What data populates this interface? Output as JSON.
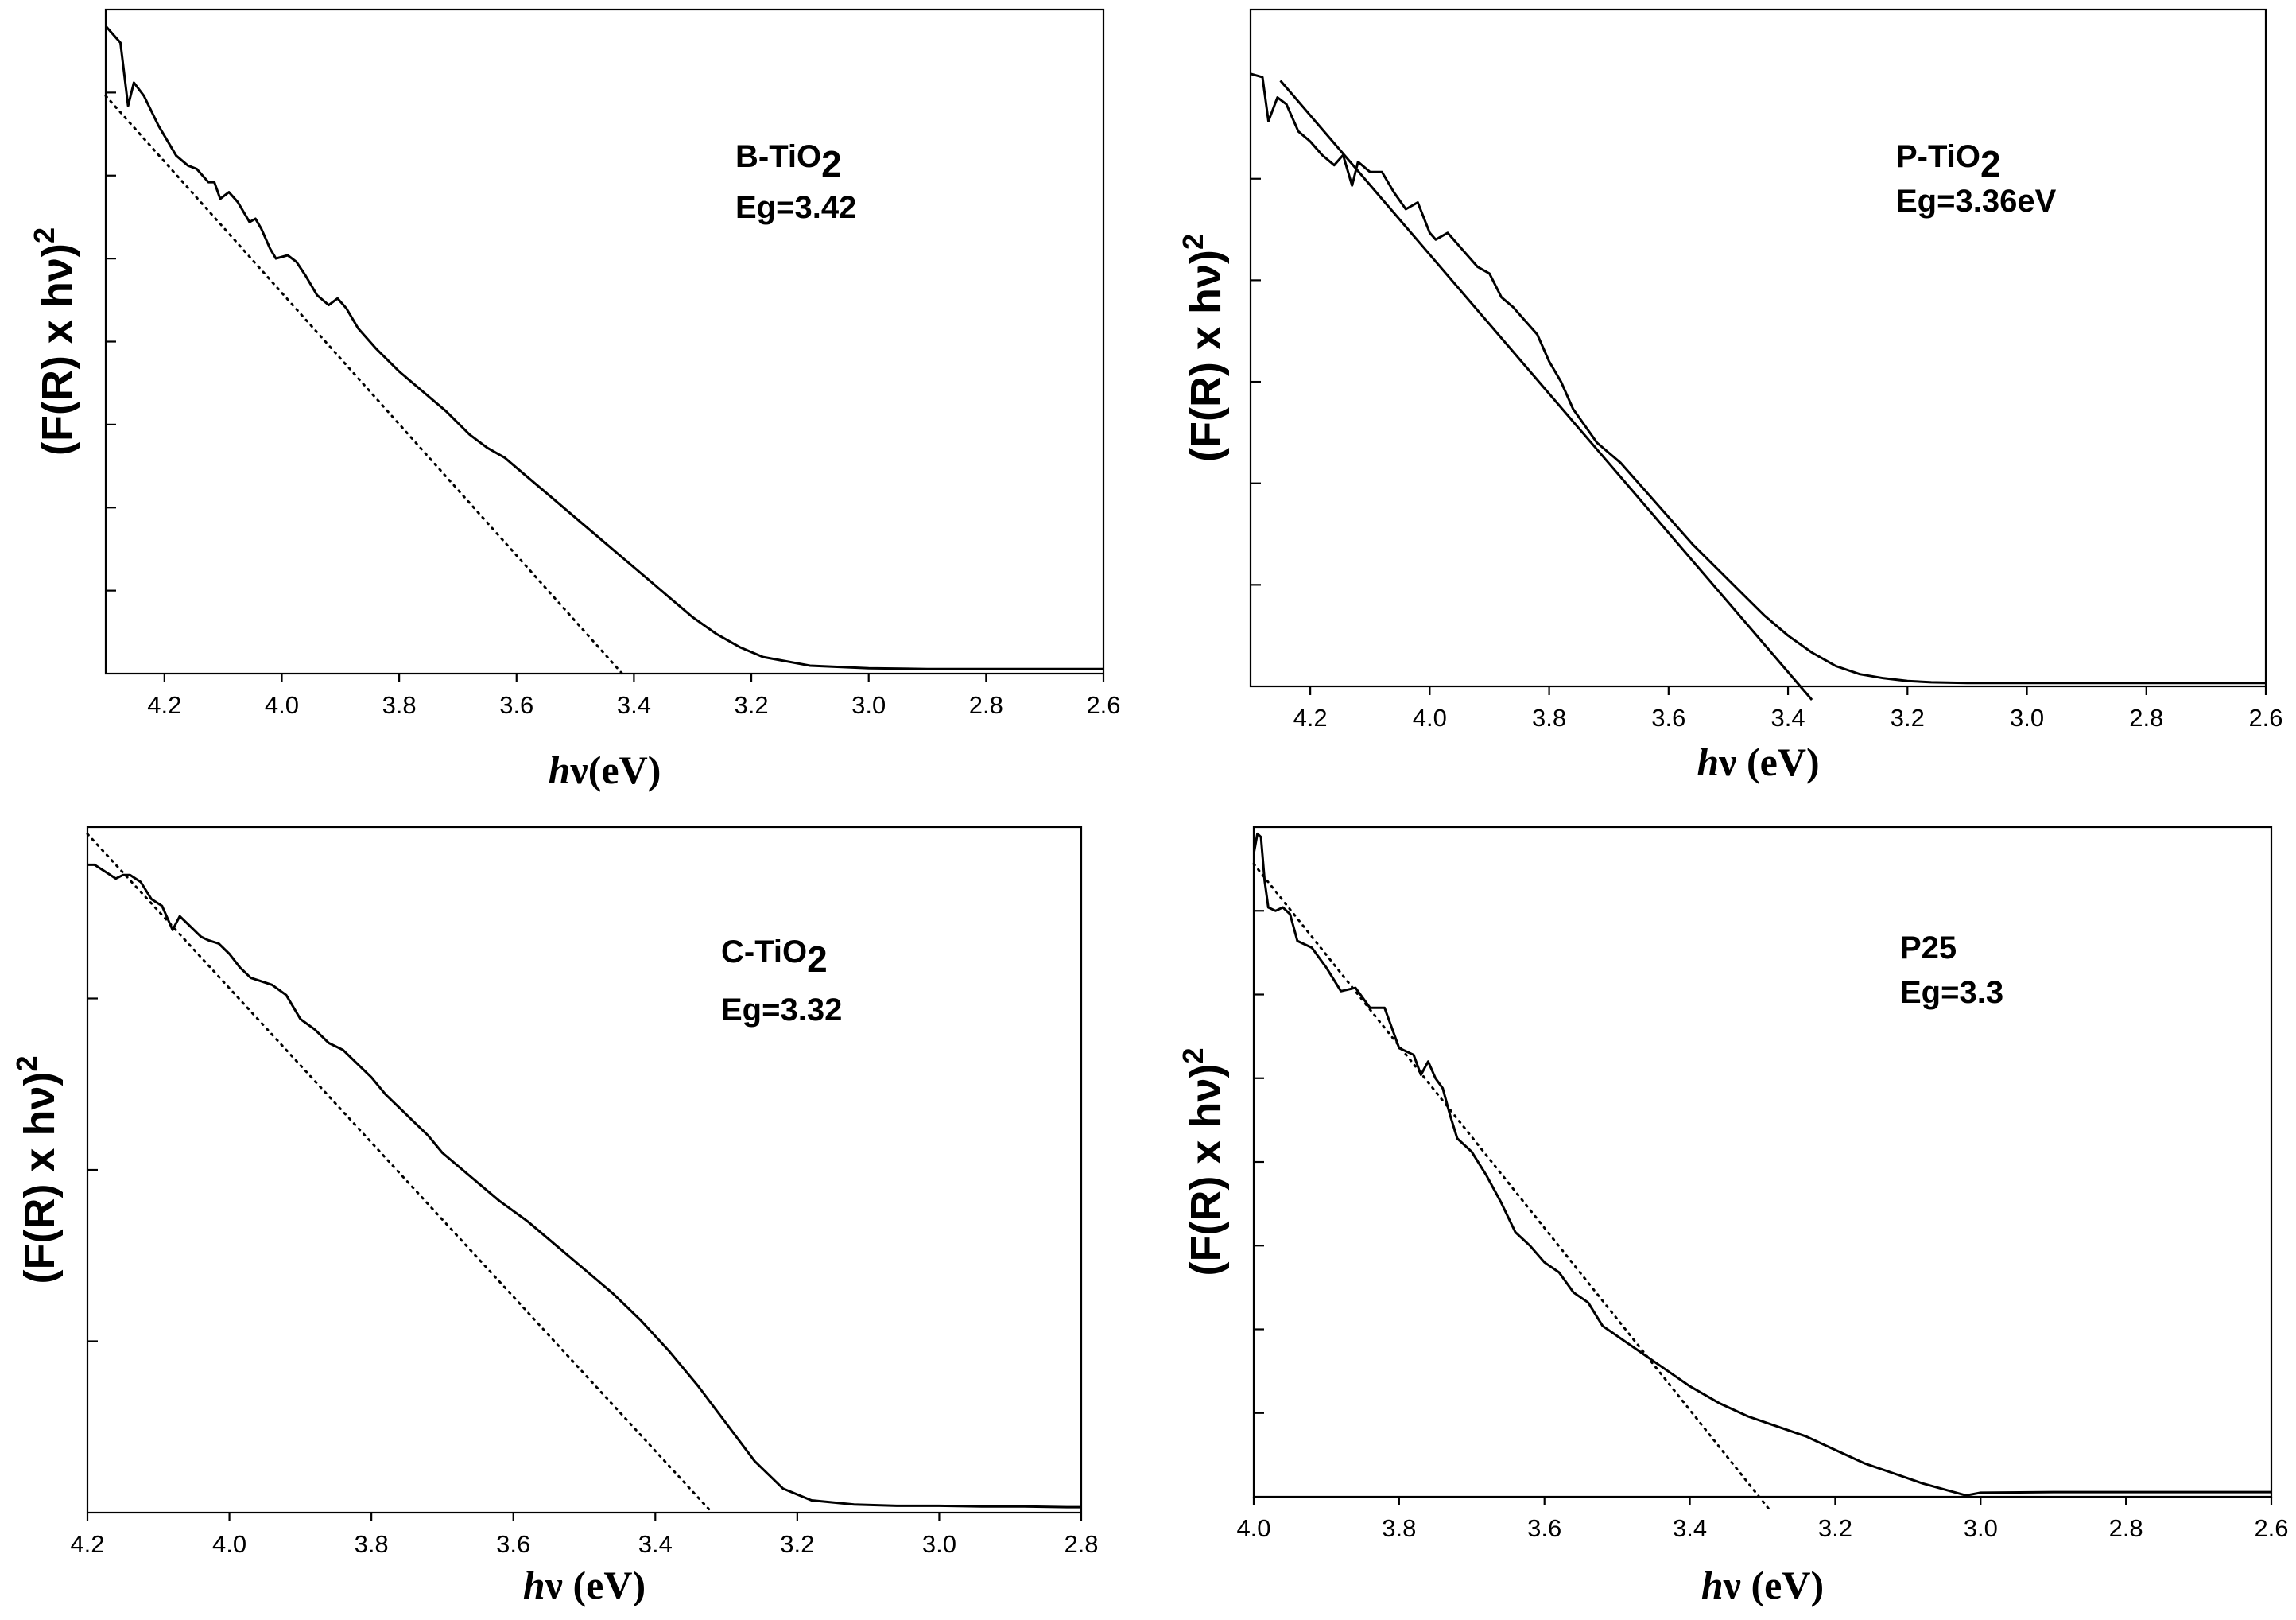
{
  "chart_data": [
    {
      "type": "line",
      "title": "",
      "xlabel": {
        "italic": "h",
        "rest": "ν(eV)"
      },
      "ylabel": "(F(R) x hν)",
      "ylabel_sup": "2",
      "xlim": [
        4.3,
        2.6
      ],
      "x_reversed": true,
      "xticks": [
        "4.2",
        "4.0",
        "3.8",
        "3.6",
        "3.4",
        "3.2",
        "3.0",
        "2.8",
        "2.6"
      ],
      "ylim": [
        0,
        1
      ],
      "y_minor_ticks": [
        0.125,
        0.25,
        0.375,
        0.5,
        0.625,
        0.75,
        0.875
      ],
      "annotation": {
        "sample": "B-TiO",
        "sub": "2",
        "eg": "Eg=3.42"
      },
      "fit_style": "dotted",
      "series": [
        {
          "name": "spectrum",
          "x": [
            4.3,
            4.285,
            4.275,
            4.262,
            4.252,
            4.235,
            4.21,
            4.18,
            4.16,
            4.145,
            4.125,
            4.115,
            4.105,
            4.09,
            4.075,
            4.055,
            4.045,
            4.035,
            4.02,
            4.01,
            3.99,
            3.975,
            3.96,
            3.94,
            3.92,
            3.905,
            3.89,
            3.87,
            3.84,
            3.8,
            3.76,
            3.72,
            3.68,
            3.65,
            3.62,
            3.58,
            3.54,
            3.5,
            3.46,
            3.42,
            3.38,
            3.34,
            3.3,
            3.26,
            3.22,
            3.18,
            3.1,
            3.0,
            2.9,
            2.8,
            2.7,
            2.6
          ],
          "y": [
            0.975,
            0.96,
            0.95,
            0.855,
            0.89,
            0.87,
            0.825,
            0.78,
            0.765,
            0.76,
            0.74,
            0.74,
            0.715,
            0.725,
            0.71,
            0.68,
            0.685,
            0.67,
            0.64,
            0.625,
            0.63,
            0.62,
            0.6,
            0.57,
            0.555,
            0.565,
            0.55,
            0.52,
            0.49,
            0.455,
            0.425,
            0.395,
            0.36,
            0.34,
            0.325,
            0.295,
            0.265,
            0.235,
            0.205,
            0.175,
            0.145,
            0.115,
            0.085,
            0.06,
            0.04,
            0.025,
            0.012,
            0.008,
            0.007,
            0.007,
            0.007,
            0.007
          ]
        },
        {
          "name": "linear fit",
          "x": [
            4.3,
            3.42
          ],
          "y": [
            0.87,
            0.0
          ]
        }
      ]
    },
    {
      "type": "line",
      "title": "",
      "xlabel": {
        "italic": "h",
        "rest": "ν (eV)"
      },
      "ylabel": "(F(R) x hν)",
      "ylabel_sup": "2",
      "xlim": [
        4.3,
        2.6
      ],
      "x_reversed": true,
      "xticks": [
        "4.2",
        "4.0",
        "3.8",
        "3.6",
        "3.4",
        "3.2",
        "3.0",
        "2.8",
        "2.6"
      ],
      "ylim": [
        0,
        1
      ],
      "y_minor_ticks": [
        0.15,
        0.3,
        0.45,
        0.6,
        0.75
      ],
      "annotation": {
        "sample": "P-TiO",
        "sub": "2",
        "eg": "Eg=3.36eV"
      },
      "fit_style": "solid",
      "series": [
        {
          "name": "spectrum",
          "x": [
            4.3,
            4.28,
            4.27,
            4.255,
            4.24,
            4.22,
            4.2,
            4.18,
            4.16,
            4.145,
            4.13,
            4.12,
            4.1,
            4.08,
            4.06,
            4.04,
            4.02,
            4.0,
            3.99,
            3.97,
            3.94,
            3.92,
            3.9,
            3.88,
            3.86,
            3.84,
            3.82,
            3.8,
            3.78,
            3.76,
            3.72,
            3.68,
            3.64,
            3.6,
            3.56,
            3.52,
            3.48,
            3.44,
            3.4,
            3.36,
            3.32,
            3.28,
            3.24,
            3.2,
            3.16,
            3.1,
            3.0,
            2.9,
            2.8,
            2.7,
            2.6
          ],
          "y": [
            0.905,
            0.9,
            0.835,
            0.87,
            0.86,
            0.82,
            0.805,
            0.785,
            0.77,
            0.785,
            0.74,
            0.775,
            0.76,
            0.76,
            0.73,
            0.705,
            0.715,
            0.67,
            0.66,
            0.67,
            0.64,
            0.62,
            0.61,
            0.575,
            0.56,
            0.54,
            0.52,
            0.48,
            0.45,
            0.41,
            0.36,
            0.33,
            0.29,
            0.25,
            0.21,
            0.175,
            0.14,
            0.105,
            0.075,
            0.05,
            0.03,
            0.018,
            0.012,
            0.008,
            0.006,
            0.005,
            0.005,
            0.005,
            0.005,
            0.005,
            0.005
          ]
        },
        {
          "name": "linear fit",
          "x": [
            4.25,
            3.36
          ],
          "y": [
            0.895,
            -0.02
          ]
        }
      ]
    },
    {
      "type": "line",
      "title": "",
      "xlabel": {
        "italic": "h",
        "rest": "ν (eV)"
      },
      "ylabel": "(F(R) x hν)",
      "ylabel_sup": "2",
      "xlim": [
        4.2,
        2.8
      ],
      "x_reversed": true,
      "xticks": [
        "4.2",
        "4.0",
        "3.8",
        "3.6",
        "3.4",
        "3.2",
        "3.0",
        "2.8"
      ],
      "ylim": [
        0,
        1
      ],
      "y_minor_ticks": [
        0.25,
        0.5,
        0.75
      ],
      "annotation": {
        "sample": "C-TiO",
        "sub": "2",
        "eg": "Eg=3.32"
      },
      "fit_style": "dotted",
      "series": [
        {
          "name": "spectrum",
          "x": [
            4.2,
            4.19,
            4.175,
            4.16,
            4.15,
            4.14,
            4.125,
            4.11,
            4.095,
            4.08,
            4.07,
            4.055,
            4.04,
            4.03,
            4.015,
            4.0,
            3.985,
            3.97,
            3.955,
            3.94,
            3.92,
            3.9,
            3.88,
            3.86,
            3.84,
            3.82,
            3.8,
            3.78,
            3.76,
            3.74,
            3.72,
            3.7,
            3.66,
            3.62,
            3.58,
            3.54,
            3.5,
            3.46,
            3.42,
            3.38,
            3.34,
            3.3,
            3.26,
            3.22,
            3.18,
            3.12,
            3.06,
            3.0,
            2.94,
            2.88,
            2.82,
            2.8
          ],
          "y": [
            0.945,
            0.945,
            0.935,
            0.925,
            0.93,
            0.93,
            0.92,
            0.895,
            0.885,
            0.85,
            0.87,
            0.855,
            0.84,
            0.835,
            0.83,
            0.815,
            0.795,
            0.78,
            0.775,
            0.77,
            0.755,
            0.72,
            0.705,
            0.685,
            0.675,
            0.655,
            0.635,
            0.61,
            0.59,
            0.57,
            0.55,
            0.525,
            0.49,
            0.455,
            0.425,
            0.39,
            0.355,
            0.32,
            0.28,
            0.235,
            0.185,
            0.13,
            0.075,
            0.035,
            0.018,
            0.012,
            0.01,
            0.01,
            0.009,
            0.009,
            0.008,
            0.008
          ]
        },
        {
          "name": "linear fit",
          "x": [
            4.2,
            3.32
          ],
          "y": [
            0.99,
            0.0
          ]
        }
      ]
    },
    {
      "type": "line",
      "title": "",
      "xlabel": {
        "italic": "h",
        "rest": "ν (eV)"
      },
      "ylabel": "(F(R) x hν)",
      "ylabel_sup": "2",
      "xlim": [
        4.0,
        2.6
      ],
      "x_reversed": true,
      "xticks": [
        "4.0",
        "3.8",
        "3.6",
        "3.4",
        "3.2",
        "3.0",
        "2.8",
        "2.6"
      ],
      "ylim": [
        0,
        1
      ],
      "y_minor_ticks": [
        0.125,
        0.25,
        0.375,
        0.5,
        0.625,
        0.75,
        0.875
      ],
      "annotation": {
        "sample": "P25",
        "sub": "",
        "eg": "Eg=3.3"
      },
      "fit_style": "dotted",
      "series": [
        {
          "name": "spectrum",
          "x": [
            4.0,
            3.995,
            3.99,
            3.985,
            3.98,
            3.97,
            3.96,
            3.95,
            3.94,
            3.92,
            3.9,
            3.88,
            3.86,
            3.84,
            3.82,
            3.8,
            3.78,
            3.77,
            3.76,
            3.75,
            3.74,
            3.73,
            3.72,
            3.7,
            3.68,
            3.66,
            3.64,
            3.62,
            3.6,
            3.58,
            3.56,
            3.54,
            3.52,
            3.48,
            3.44,
            3.4,
            3.36,
            3.32,
            3.28,
            3.24,
            3.2,
            3.16,
            3.12,
            3.08,
            3.04,
            3.02,
            3.0,
            2.9,
            2.8,
            2.7,
            2.6
          ],
          "y": [
            0.96,
            0.99,
            0.985,
            0.92,
            0.88,
            0.875,
            0.88,
            0.87,
            0.83,
            0.82,
            0.79,
            0.755,
            0.76,
            0.73,
            0.73,
            0.67,
            0.66,
            0.63,
            0.65,
            0.625,
            0.61,
            0.57,
            0.535,
            0.515,
            0.48,
            0.44,
            0.395,
            0.375,
            0.35,
            0.335,
            0.305,
            0.29,
            0.255,
            0.225,
            0.195,
            0.165,
            0.14,
            0.12,
            0.105,
            0.09,
            0.07,
            0.05,
            0.035,
            0.02,
            0.008,
            0.002,
            0.006,
            0.007,
            0.007,
            0.007,
            0.007
          ]
        },
        {
          "name": "linear fit",
          "x": [
            4.0,
            3.29
          ],
          "y": [
            0.945,
            -0.02
          ]
        }
      ]
    }
  ]
}
